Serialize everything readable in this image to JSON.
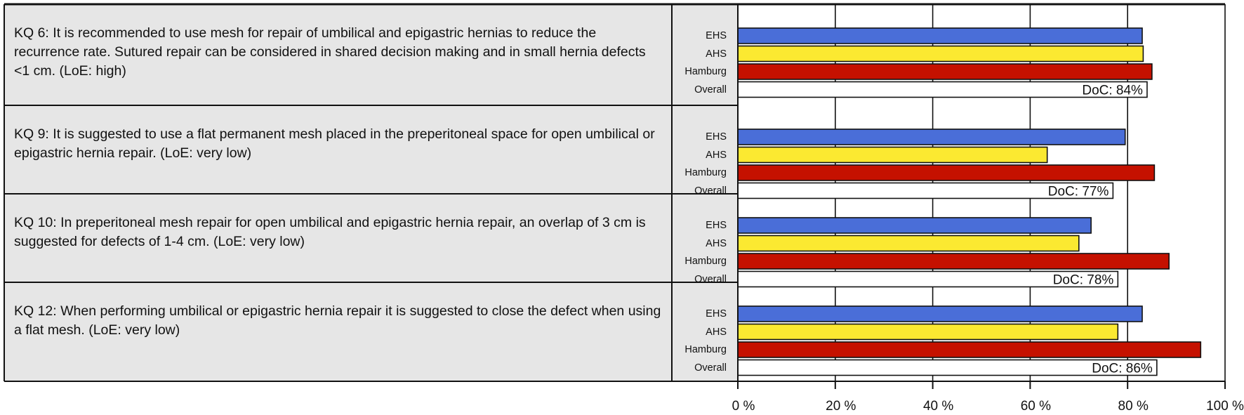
{
  "chart_data": {
    "type": "bar",
    "orientation": "horizontal",
    "x_ticks": [
      "0 %",
      "20 %",
      "40 %",
      "60 %",
      "80 %",
      "100 %"
    ],
    "xlim": [
      0,
      100
    ],
    "grid": true,
    "colors": {
      "EHS": "#4a6ed8",
      "AHS": "#fbe931",
      "Hamburg": "#c51100",
      "Overall": "#ffffff"
    },
    "groups": [
      {
        "statement": "KQ 6: It is recommended to use mesh for repair of umbilical and epigastric hernias to reduce the recurrence rate. Sutured repair can be considered in shared decision making and in small hernia defects <1 cm.  (LoE: high)",
        "categories": [
          "EHS",
          "AHS",
          "Hamburg",
          "Overall"
        ],
        "values": [
          83,
          83.2,
          85,
          84
        ],
        "doc_label": "DoC: 84%"
      },
      {
        "statement": "KQ 9: It is suggested to use a flat permanent mesh placed in the preperitoneal space for open umbilical or epigastric hernia repair. (LoE: very low)",
        "categories": [
          "EHS",
          "AHS",
          "Hamburg",
          "Overall"
        ],
        "values": [
          79.5,
          63.5,
          85.5,
          77
        ],
        "doc_label": "DoC: 77%"
      },
      {
        "statement": "KQ 10: In preperitoneal mesh repair for open umbilical and epigastric hernia repair, an overlap of 3 cm is suggested for defects of 1-4 cm. (LoE: very low)",
        "categories": [
          "EHS",
          "AHS",
          "Hamburg",
          "Overall"
        ],
        "values": [
          72.5,
          70,
          88.5,
          78
        ],
        "doc_label": "DoC: 78%"
      },
      {
        "statement": "KQ 12: When performing umbilical or epigastric hernia repair it is suggested to close the defect when using a flat mesh. (LoE: very low)",
        "categories": [
          "EHS",
          "AHS",
          "Hamburg",
          "Overall"
        ],
        "values": [
          83,
          78,
          95,
          86
        ],
        "doc_label": "DoC: 86%"
      }
    ]
  }
}
